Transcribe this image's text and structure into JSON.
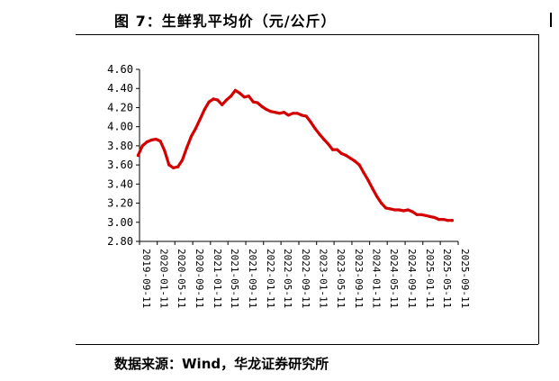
{
  "figure": {
    "title": "图 7：生鲜乳平均价（元/公斤）",
    "source": "数据来源：Wind，华龙证券研究所"
  },
  "colors": {
    "line": "#d40000",
    "axis": "#000000"
  },
  "chart_data": {
    "type": "line",
    "title": "",
    "xlabel": "",
    "ylabel": "",
    "ylim": [
      2.8,
      4.6
    ],
    "yticks": [
      "4.60",
      "4.40",
      "4.20",
      "4.00",
      "3.80",
      "3.60",
      "3.40",
      "3.20",
      "3.00",
      "2.80"
    ],
    "xlim": [
      "2019-09-11",
      "2025-09-11"
    ],
    "categories": [
      "2019-09-11",
      "2020-01-11",
      "2020-05-11",
      "2020-09-11",
      "2021-01-11",
      "2021-05-11",
      "2021-09-11",
      "2022-01-11",
      "2022-05-11",
      "2022-09-11",
      "2023-01-11",
      "2023-05-11",
      "2023-09-11",
      "2024-01-11",
      "2024-05-11",
      "2024-09-11",
      "2025-01-11",
      "2025-05-11",
      "2025-09-11"
    ],
    "grid": false,
    "legend": "none",
    "series": [
      {
        "x": [
          "2019-09-01",
          "2019-10-01",
          "2019-11-01",
          "2019-12-01",
          "2020-01-01",
          "2020-02-01",
          "2020-03-01",
          "2020-04-01",
          "2020-05-01",
          "2020-06-01",
          "2020-07-01",
          "2020-08-01",
          "2020-09-01",
          "2020-10-01",
          "2020-11-01",
          "2020-12-01",
          "2021-01-01",
          "2021-02-01",
          "2021-03-01",
          "2021-04-01",
          "2021-05-01",
          "2021-06-01",
          "2021-07-01",
          "2021-08-01",
          "2021-09-01",
          "2021-10-01",
          "2021-11-01",
          "2021-12-01",
          "2022-01-01",
          "2022-02-01",
          "2022-03-01",
          "2022-04-01",
          "2022-05-01",
          "2022-06-01",
          "2022-07-01",
          "2022-08-01",
          "2022-09-01",
          "2022-10-01",
          "2022-11-01",
          "2022-12-01",
          "2023-01-01",
          "2023-02-01",
          "2023-03-01",
          "2023-04-01",
          "2023-05-01",
          "2023-06-01",
          "2023-07-01",
          "2023-08-01",
          "2023-09-01",
          "2023-10-01",
          "2023-11-01",
          "2023-12-01",
          "2024-01-01",
          "2024-02-01",
          "2024-03-01",
          "2024-04-01",
          "2024-05-01",
          "2024-06-01",
          "2024-07-01",
          "2024-08-01",
          "2024-09-01",
          "2024-10-01",
          "2024-11-01",
          "2024-12-01",
          "2025-01-01",
          "2025-02-01",
          "2025-03-01",
          "2025-04-01",
          "2025-05-01",
          "2025-06-01",
          "2025-07-01",
          "2025-08-01"
        ],
        "values": [
          3.7,
          3.8,
          3.84,
          3.86,
          3.87,
          3.85,
          3.75,
          3.6,
          3.57,
          3.58,
          3.65,
          3.78,
          3.9,
          3.98,
          4.08,
          4.18,
          4.26,
          4.29,
          4.28,
          4.23,
          4.28,
          4.32,
          4.38,
          4.35,
          4.31,
          4.32,
          4.26,
          4.25,
          4.21,
          4.18,
          4.16,
          4.15,
          4.14,
          4.15,
          4.12,
          4.14,
          4.14,
          4.12,
          4.11,
          4.05,
          3.98,
          3.92,
          3.87,
          3.82,
          3.76,
          3.76,
          3.72,
          3.7,
          3.67,
          3.64,
          3.6,
          3.52,
          3.44,
          3.35,
          3.27,
          3.2,
          3.15,
          3.14,
          3.13,
          3.13,
          3.12,
          3.13,
          3.11,
          3.08,
          3.08,
          3.07,
          3.06,
          3.05,
          3.03,
          3.03,
          3.02,
          3.02
        ]
      }
    ]
  }
}
